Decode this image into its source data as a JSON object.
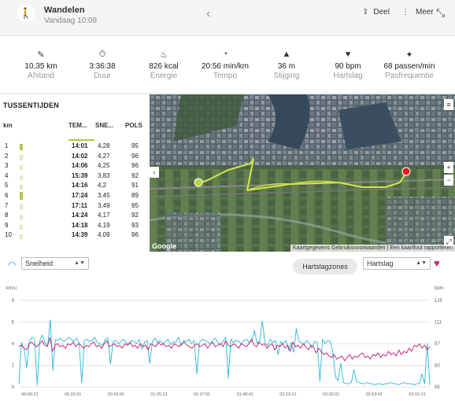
{
  "header": {
    "title": "Wandelen",
    "subtitle": "Vandaag 10:08",
    "share_label": "Deel",
    "more_label": "Meer",
    "activity_icon": "walking-icon"
  },
  "stats": [
    {
      "icon": "ruler-icon",
      "glyph": "✎",
      "value": "10,35 km",
      "label": "Afstand"
    },
    {
      "icon": "stopwatch-icon",
      "glyph": "⏱",
      "value": "3:36:38",
      "label": "Duur"
    },
    {
      "icon": "flame-icon",
      "glyph": "♨",
      "value": "826 kcal",
      "label": "Energie"
    },
    {
      "icon": "gauge-icon",
      "glyph": "◔",
      "value": "20:56 min/km",
      "label": "Tempo"
    },
    {
      "icon": "mountain-icon",
      "glyph": "▲",
      "value": "36 m",
      "label": "Stijging"
    },
    {
      "icon": "heart-rate-icon",
      "glyph": "♥",
      "value": "90 bpm",
      "label": "Hartslag"
    },
    {
      "icon": "footstep-icon",
      "glyph": "✦",
      "value": "68 passen/min",
      "label": "Pasfrequentie"
    }
  ],
  "splits": {
    "title": "TUSSENTIJDEN",
    "columns": [
      "km",
      "TEM...",
      "SNE...",
      "POLS"
    ],
    "rows": [
      {
        "km": "1",
        "tempo": "14:01",
        "speed": "4,28",
        "hr": "95",
        "level": 0.6
      },
      {
        "km": "2",
        "tempo": "14:02",
        "speed": "4,27",
        "hr": "96",
        "level": 0.3
      },
      {
        "km": "3",
        "tempo": "14:06",
        "speed": "4,25",
        "hr": "96",
        "level": 0.3
      },
      {
        "km": "4",
        "tempo": "15:39",
        "speed": "3,83",
        "hr": "92",
        "level": 0.3
      },
      {
        "km": "5",
        "tempo": "14:16",
        "speed": "4,2",
        "hr": "91",
        "level": 0.3
      },
      {
        "km": "6",
        "tempo": "17:24",
        "speed": "3,45",
        "hr": "89",
        "level": 0.9
      },
      {
        "km": "7",
        "tempo": "17:11",
        "speed": "3,49",
        "hr": "95",
        "level": 0.3
      },
      {
        "km": "8",
        "tempo": "14:24",
        "speed": "4,17",
        "hr": "92",
        "level": 0.3
      },
      {
        "km": "9",
        "tempo": "14:18",
        "speed": "4,19",
        "hr": "93",
        "level": 0.3
      },
      {
        "km": "10",
        "tempo": "14:39",
        "speed": "4,09",
        "hr": "96",
        "level": 0.3
      }
    ]
  },
  "map": {
    "attribution": "Kaartgegevens  Gebruiksvoorwaarden | Een kaartfout rapporteren",
    "google_label": "Google",
    "zoom_in": "+",
    "zoom_out": "−",
    "menu_glyph": "≡",
    "expand_glyph": "⤢",
    "collapse_glyph": "‹"
  },
  "controls": {
    "left_select": "Snelheid",
    "zones_button": "Hartslagzones",
    "right_select": "Hartslag"
  },
  "chart_data": {
    "type": "line",
    "left_axis_label": "km/u",
    "right_axis_label": "bpm",
    "left_ticks": [
      "0",
      "2",
      "4",
      "6",
      "8"
    ],
    "right_ticks": [
      "69",
      "83",
      "97",
      "111",
      "125"
    ],
    "ylim_left": [
      0,
      8
    ],
    "ylim_right": [
      69,
      125
    ],
    "x_ticks": [
      "00:00:21",
      "00:22:01",
      "00:43:41",
      "01:05:21",
      "01:27:01",
      "01:48:41",
      "02:10:21",
      "02:32:01",
      "02:53:41",
      "03:15:21"
    ],
    "grid": true,
    "series": [
      {
        "name": "Snelheid",
        "color": "#29b6d9",
        "axis": "left",
        "values": [
          0.3,
          4.1,
          3.5,
          1.8,
          4.2,
          4.6,
          4.4,
          0.2,
          4.3,
          4.8,
          4.1,
          3.8,
          6.2,
          1.5,
          4.4,
          4.3,
          4.5,
          4.2,
          4.3,
          4.6,
          4.4,
          4.2,
          4.5,
          4.1,
          0.4,
          4.3,
          4.4,
          4.2,
          4.3,
          4.6,
          4.1,
          4.0,
          3.8,
          4.4,
          4.5,
          2.1,
          4.2,
          4.3,
          4.0,
          4.2,
          4.4,
          4.1,
          3.9,
          4.3,
          4.2,
          4.0,
          4.4,
          3.5,
          4.1,
          4.3,
          2.2,
          4.2,
          4.5,
          4.1,
          4.3,
          4.0,
          4.2,
          4.4,
          3.9,
          4.2,
          4.1,
          4.6,
          3.8,
          4.3,
          4.2,
          4.4,
          4.0,
          4.3,
          1.2,
          4.1,
          4.4,
          4.3,
          4.2,
          4.0,
          4.3,
          4.5,
          4.1,
          3.9,
          4.2,
          4.6,
          0.8,
          4.4,
          4.1,
          4.3,
          4.2,
          4.0,
          4.3,
          4.4,
          4.1,
          4.2,
          5.2,
          4.0,
          4.3,
          6.1,
          4.2,
          3.8,
          4.4,
          4.1,
          4.3,
          3.0,
          4.2,
          4.0,
          4.3,
          3.4,
          4.1,
          3.2,
          5.4,
          4.2,
          4.1,
          3.9,
          4.3,
          4.0,
          3.6,
          4.2,
          4.1,
          0.5,
          4.4,
          4.0,
          4.3,
          4.2,
          3.1,
          0.9,
          0.6,
          2.2,
          0.4,
          0.3,
          0.3,
          0.4,
          1.6,
          0.5,
          0.4,
          0.3,
          0.3,
          0.4,
          0.3,
          0.3,
          0.2,
          0.3,
          0.3,
          0.2,
          0.3,
          0.3,
          0.4,
          0.3,
          0.3,
          0.2,
          0.3,
          0.4,
          0.3,
          0.3,
          0.3,
          0.2,
          0.3,
          0.3,
          1.2,
          0.3,
          4.0,
          0.2
        ]
      },
      {
        "name": "Hartslag",
        "color": "#c2186b",
        "axis": "right",
        "values": [
          95,
          96,
          94,
          93,
          97,
          98,
          96,
          95,
          97,
          99,
          96,
          95,
          101,
          92,
          96,
          97,
          95,
          96,
          94,
          97,
          96,
          98,
          95,
          97,
          96,
          94,
          96,
          95,
          97,
          98,
          95,
          96,
          94,
          97,
          99,
          95,
          96,
          97,
          95,
          96,
          94,
          97,
          96,
          98,
          95,
          96,
          94,
          97,
          95,
          96,
          93,
          97,
          96,
          95,
          98,
          96,
          97,
          95,
          96,
          94,
          97,
          96,
          95,
          97,
          98,
          96,
          95,
          94,
          96,
          97,
          95,
          96,
          97,
          94,
          96,
          98,
          95,
          96,
          97,
          95,
          99,
          96,
          95,
          97,
          96,
          94,
          97,
          96,
          95,
          97,
          100,
          96,
          95,
          98,
          96,
          97,
          94,
          96,
          97,
          93,
          96,
          95,
          97,
          94,
          96,
          92,
          98,
          95,
          96,
          94,
          97,
          95,
          93,
          96,
          95,
          91,
          94,
          92,
          90,
          91,
          89,
          88,
          90,
          87,
          88,
          89,
          86,
          88,
          90,
          87,
          89,
          88,
          90,
          91,
          88,
          89,
          87,
          90,
          89,
          91,
          88,
          90,
          89,
          92,
          90,
          91,
          89,
          93,
          90,
          92,
          91,
          94,
          92,
          96,
          95,
          97,
          94,
          96,
          93,
          95
        ]
      }
    ]
  }
}
